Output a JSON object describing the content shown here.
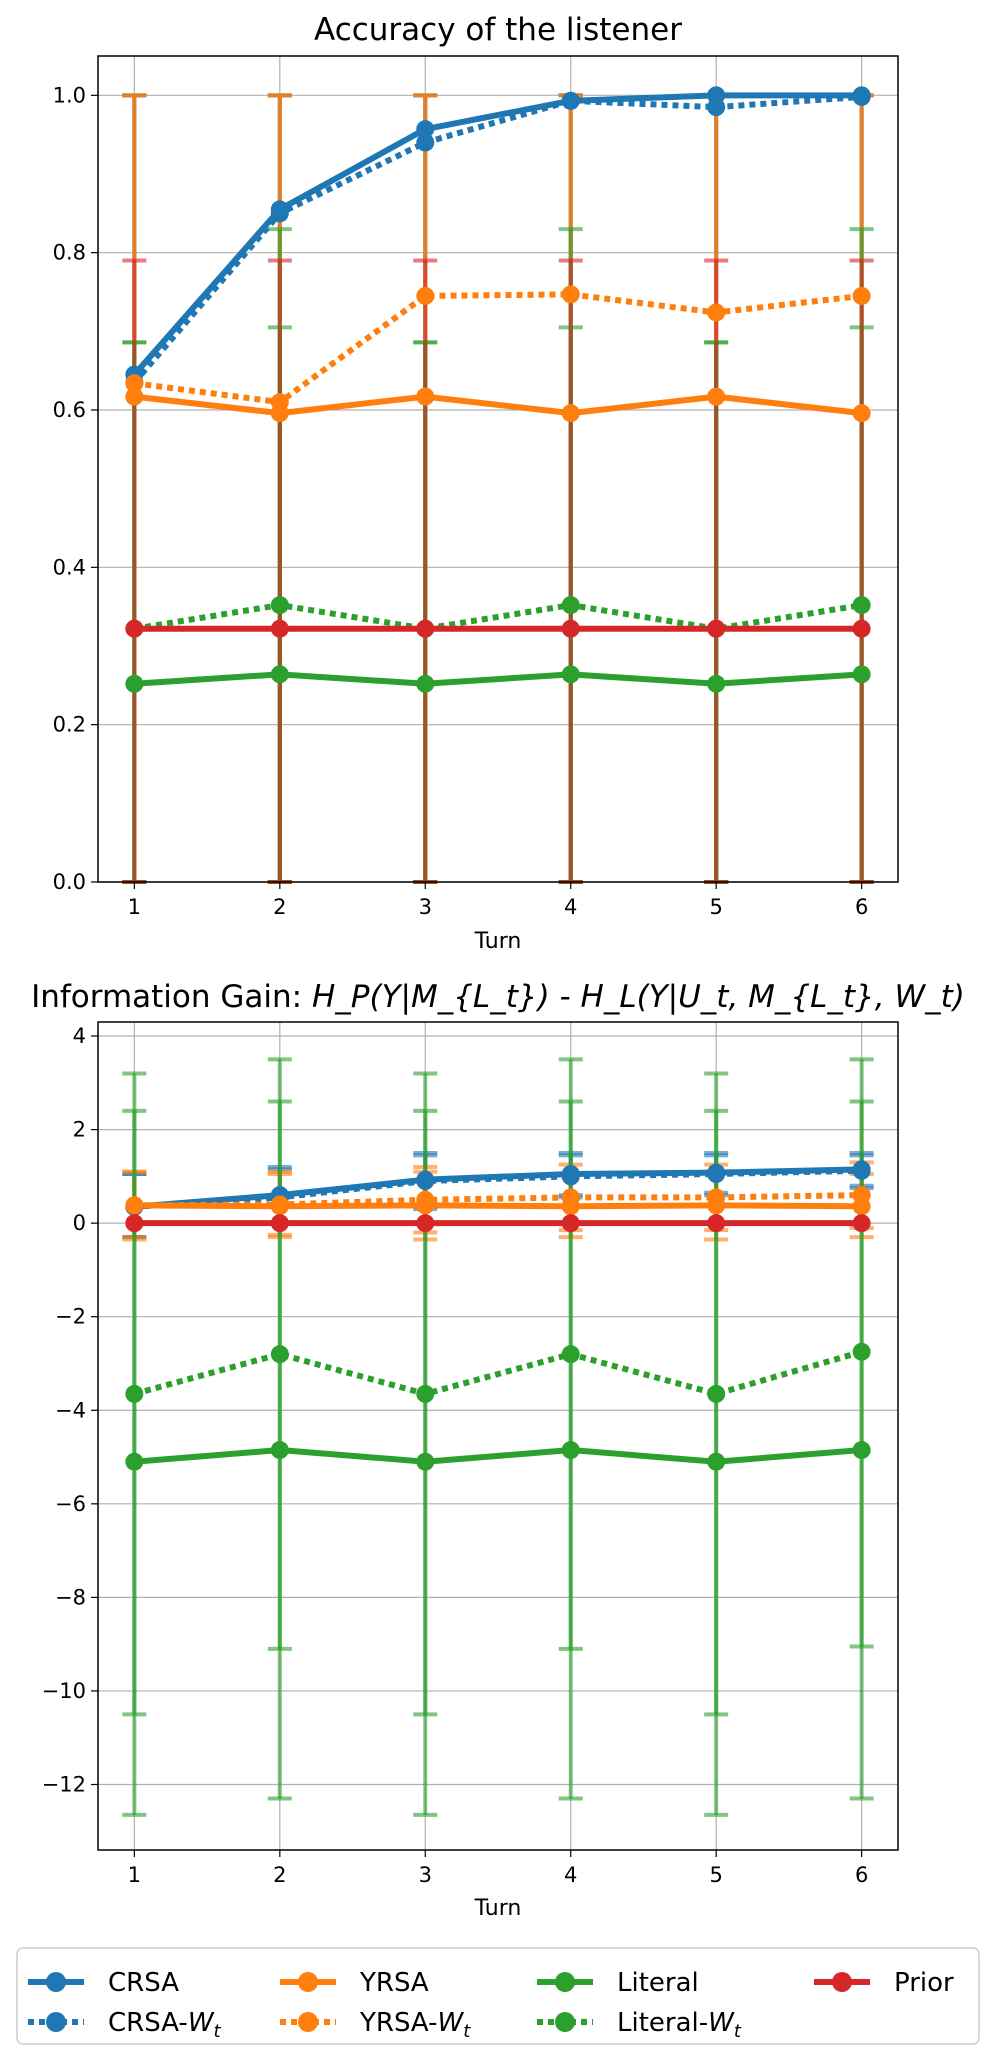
{
  "chart_data": [
    {
      "type": "line",
      "title": "Accuracy of the listener",
      "xlabel": "Turn",
      "ylabel": "",
      "x": [
        1,
        2,
        3,
        4,
        5,
        6
      ],
      "xticks": [
        "1",
        "2",
        "3",
        "4",
        "5",
        "6"
      ],
      "yticks": [
        "0.0",
        "0.2",
        "0.4",
        "0.6",
        "0.8",
        "1.0"
      ],
      "ytick_values": [
        0.0,
        0.2,
        0.4,
        0.6,
        0.8,
        1.0
      ],
      "ylim": [
        0.0,
        1.05
      ],
      "grid": true,
      "series": [
        {
          "name": "CRSA",
          "key": "crsa",
          "color": "#1f77b4",
          "style": "solid",
          "values": [
            0.645,
            0.855,
            0.957,
            0.993,
            1.0,
            1.0
          ],
          "err_low": [
            0.0,
            0.0,
            0.0,
            0.0,
            0.0,
            0.0
          ],
          "err_high": [
            1.0,
            1.0,
            1.0,
            1.0,
            1.0,
            1.0
          ]
        },
        {
          "name": "CRSA-Wt",
          "key": "crsa_wt",
          "color": "#1f77b4",
          "style": "dotted",
          "values": [
            0.635,
            0.85,
            0.94,
            0.993,
            0.985,
            0.998
          ],
          "err_low": [
            0.0,
            0.0,
            0.0,
            0.0,
            0.0,
            0.0
          ],
          "err_high": [
            1.0,
            1.0,
            1.0,
            1.0,
            1.0,
            1.0
          ]
        },
        {
          "name": "YRSA",
          "key": "yrsa",
          "color": "#ff7f0e",
          "style": "solid",
          "values": [
            0.617,
            0.596,
            0.617,
            0.596,
            0.617,
            0.596
          ],
          "err_low": [
            0.0,
            0.0,
            0.0,
            0.0,
            0.0,
            0.0
          ],
          "err_high": [
            1.0,
            1.0,
            1.0,
            1.0,
            1.0,
            1.0
          ]
        },
        {
          "name": "YRSA-Wt",
          "key": "yrsa_wt",
          "color": "#ff7f0e",
          "style": "dotted",
          "values": [
            0.634,
            0.61,
            0.745,
            0.747,
            0.724,
            0.745
          ],
          "err_low": [
            0.0,
            0.0,
            0.0,
            0.0,
            0.0,
            0.0
          ],
          "err_high": [
            1.0,
            1.0,
            1.0,
            1.0,
            1.0,
            1.0
          ]
        },
        {
          "name": "Literal",
          "key": "literal",
          "color": "#2ca02c",
          "style": "solid",
          "values": [
            0.252,
            0.264,
            0.252,
            0.264,
            0.252,
            0.264
          ],
          "err_low": [
            0.0,
            0.0,
            0.0,
            0.0,
            0.0,
            0.0
          ],
          "err_high": [
            0.686,
            0.705,
            0.686,
            0.705,
            0.686,
            0.705
          ]
        },
        {
          "name": "Literal-Wt",
          "key": "literal_wt",
          "color": "#2ca02c",
          "style": "dotted",
          "values": [
            0.322,
            0.352,
            0.322,
            0.352,
            0.322,
            0.352
          ],
          "err_low": [
            0.0,
            0.0,
            0.0,
            0.0,
            0.0,
            0.0
          ],
          "err_high": [
            0.686,
            0.83,
            0.686,
            0.83,
            0.686,
            0.83
          ]
        },
        {
          "name": "Prior",
          "key": "prior",
          "color": "#d62728",
          "style": "solid",
          "values": [
            0.322,
            0.322,
            0.322,
            0.322,
            0.322,
            0.322
          ],
          "err_low": [
            0.0,
            0.0,
            0.0,
            0.0,
            0.0,
            0.0
          ],
          "err_high": [
            0.79,
            0.79,
            0.79,
            0.79,
            0.79,
            0.79
          ]
        }
      ]
    },
    {
      "type": "line",
      "title_prefix": "Information Gain: ",
      "title_tex": "H_P(Y|M_{L_t}) - H_L(Y|U_t, M_{L_t}, W_t)",
      "xlabel": "Turn",
      "ylabel": "",
      "x": [
        1,
        2,
        3,
        4,
        5,
        6
      ],
      "xticks": [
        "1",
        "2",
        "3",
        "4",
        "5",
        "6"
      ],
      "yticks": [
        "4",
        "2",
        "0",
        "−2",
        "−4",
        "−6",
        "−8",
        "−10",
        "−12"
      ],
      "ytick_values": [
        4,
        2,
        0,
        -2,
        -4,
        -6,
        -8,
        -10,
        -12
      ],
      "ylim": [
        -13.4,
        4.3
      ],
      "grid": true,
      "series": [
        {
          "name": "CRSA",
          "key": "crsa",
          "color": "#1f77b4",
          "style": "solid",
          "values": [
            0.35,
            0.6,
            0.93,
            1.05,
            1.08,
            1.15
          ],
          "err_low": [
            -0.3,
            0.0,
            0.35,
            0.6,
            0.65,
            0.8
          ],
          "err_high": [
            1.05,
            1.2,
            1.5,
            1.5,
            1.5,
            1.5
          ]
        },
        {
          "name": "CRSA-Wt",
          "key": "crsa_wt",
          "color": "#1f77b4",
          "style": "dotted",
          "values": [
            0.35,
            0.55,
            0.9,
            1.0,
            1.05,
            1.12
          ],
          "err_low": [
            -0.3,
            0.0,
            0.3,
            0.55,
            0.6,
            0.75
          ],
          "err_high": [
            1.05,
            1.15,
            1.45,
            1.45,
            1.45,
            1.45
          ]
        },
        {
          "name": "YRSA",
          "key": "yrsa",
          "color": "#ff7f0e",
          "style": "solid",
          "values": [
            0.38,
            0.36,
            0.38,
            0.36,
            0.38,
            0.36
          ],
          "err_low": [
            -0.35,
            -0.3,
            -0.35,
            -0.3,
            -0.35,
            -0.3
          ],
          "err_high": [
            1.1,
            1.05,
            1.1,
            1.05,
            1.1,
            1.05
          ]
        },
        {
          "name": "YRSA-Wt",
          "key": "yrsa_wt",
          "color": "#ff7f0e",
          "style": "dotted",
          "values": [
            0.38,
            0.4,
            0.5,
            0.55,
            0.55,
            0.6
          ],
          "err_low": [
            -0.3,
            -0.25,
            -0.2,
            -0.15,
            -0.15,
            -0.1
          ],
          "err_high": [
            1.1,
            1.1,
            1.2,
            1.25,
            1.25,
            1.3
          ]
        },
        {
          "name": "Literal",
          "key": "literal",
          "color": "#2ca02c",
          "style": "solid",
          "values": [
            -5.1,
            -4.85,
            -5.1,
            -4.85,
            -5.1,
            -4.85
          ],
          "err_low": [
            -12.65,
            -12.3,
            -12.65,
            -12.3,
            -12.65,
            -12.3
          ],
          "err_high": [
            2.4,
            2.6,
            2.4,
            2.6,
            2.4,
            2.6
          ]
        },
        {
          "name": "Literal-Wt",
          "key": "literal_wt",
          "color": "#2ca02c",
          "style": "dotted",
          "values": [
            -3.65,
            -2.8,
            -3.65,
            -2.8,
            -3.65,
            -2.75
          ],
          "err_low": [
            -10.5,
            -9.1,
            -10.5,
            -9.1,
            -10.5,
            -9.05
          ],
          "err_high": [
            3.2,
            3.5,
            3.2,
            3.5,
            3.2,
            3.5
          ]
        },
        {
          "name": "Prior",
          "key": "prior",
          "color": "#d62728",
          "style": "solid",
          "values": [
            0.0,
            0.0,
            0.0,
            0.0,
            0.0,
            0.0
          ],
          "err_low": [
            0.0,
            0.0,
            0.0,
            0.0,
            0.0,
            0.0
          ],
          "err_high": [
            0.0,
            0.0,
            0.0,
            0.0,
            0.0,
            0.0
          ]
        }
      ]
    }
  ],
  "legend": {
    "placement": "bottom",
    "entries": [
      {
        "label": "CRSA",
        "key": "crsa"
      },
      {
        "label": "YRSA",
        "key": "yrsa"
      },
      {
        "label": "Literal",
        "key": "literal"
      },
      {
        "label": "Prior",
        "key": "prior"
      },
      {
        "label": "CRSA-",
        "math": "W",
        "sub": "t",
        "key": "crsa_wt"
      },
      {
        "label": "YRSA-",
        "math": "W",
        "sub": "t",
        "key": "yrsa_wt"
      },
      {
        "label": "Literal-",
        "math": "W",
        "sub": "t",
        "key": "literal_wt"
      }
    ]
  }
}
